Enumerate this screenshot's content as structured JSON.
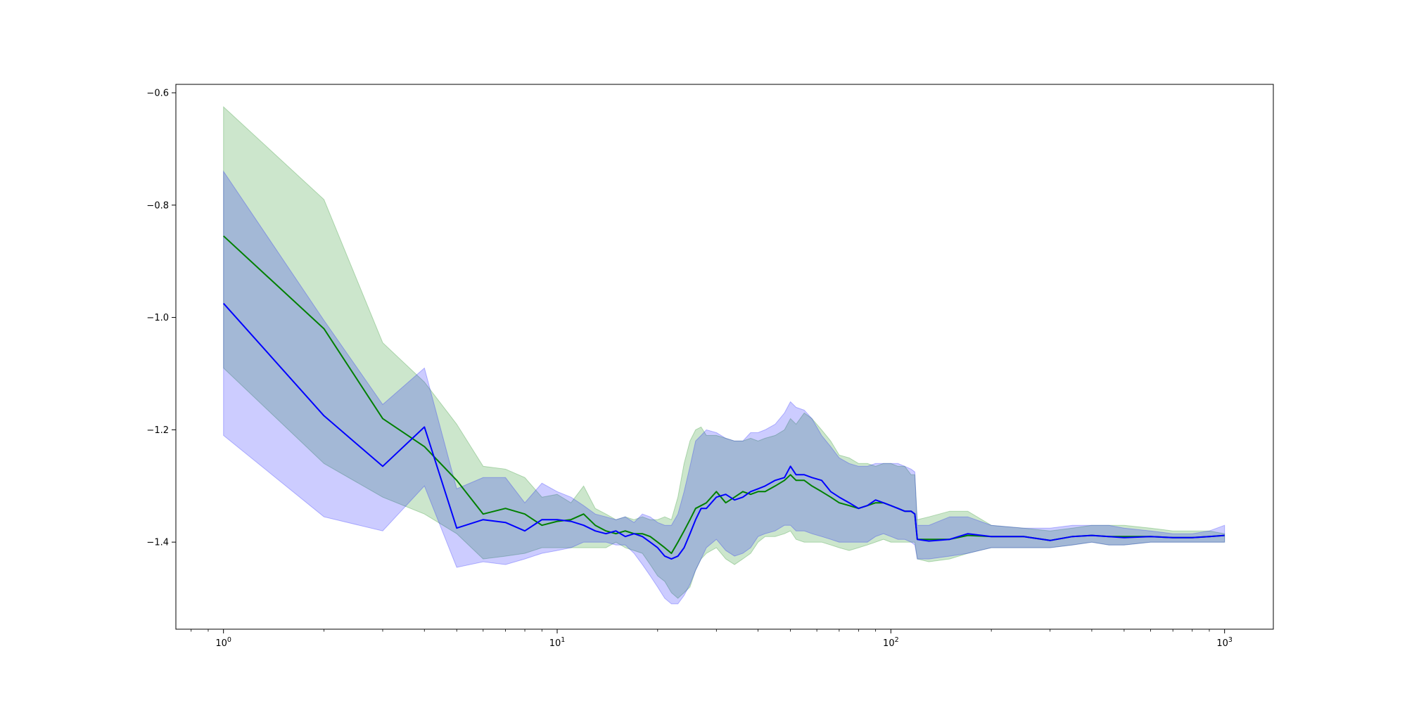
{
  "chart_data": {
    "type": "line",
    "title": "",
    "xlabel": "",
    "ylabel": "",
    "xscale": "log",
    "xlim": [
      0.72,
      1400
    ],
    "ylim": [
      -1.555,
      -0.585
    ],
    "grid": false,
    "x_ticks": [
      {
        "value": 1,
        "base": "10",
        "exp": "0"
      },
      {
        "value": 10,
        "base": "10",
        "exp": "1"
      },
      {
        "value": 100,
        "base": "10",
        "exp": "2"
      },
      {
        "value": 1000,
        "base": "10",
        "exp": "3"
      }
    ],
    "y_ticks": [
      {
        "value": -0.6,
        "label": "−0.6"
      },
      {
        "value": -0.8,
        "label": "−0.8"
      },
      {
        "value": -1.0,
        "label": "−1.0"
      },
      {
        "value": -1.2,
        "label": "−1.2"
      },
      {
        "value": -1.4,
        "label": "−1.4"
      }
    ],
    "series": [
      {
        "color": "#008000",
        "band_color": "#008000",
        "x": [
          1,
          2,
          3,
          4,
          5,
          6,
          7,
          8,
          9,
          10,
          11,
          12,
          13,
          14,
          15,
          16,
          17,
          18,
          19,
          20,
          21,
          22,
          23,
          24,
          25,
          26,
          27,
          28,
          30,
          32,
          34,
          36,
          38,
          40,
          42,
          45,
          48,
          50,
          52,
          55,
          58,
          62,
          66,
          70,
          75,
          80,
          85,
          90,
          95,
          100,
          105,
          110,
          115,
          118,
          120,
          130,
          150,
          170,
          200,
          250,
          300,
          350,
          400,
          450,
          500,
          600,
          700,
          800,
          900,
          1000
        ],
        "mean": [
          -0.855,
          -1.02,
          -1.18,
          -1.23,
          -1.29,
          -1.35,
          -1.34,
          -1.35,
          -1.37,
          -1.363,
          -1.36,
          -1.35,
          -1.37,
          -1.38,
          -1.385,
          -1.38,
          -1.385,
          -1.385,
          -1.39,
          -1.4,
          -1.41,
          -1.42,
          -1.4,
          -1.38,
          -1.36,
          -1.34,
          -1.335,
          -1.33,
          -1.31,
          -1.33,
          -1.32,
          -1.31,
          -1.315,
          -1.31,
          -1.31,
          -1.3,
          -1.29,
          -1.28,
          -1.29,
          -1.29,
          -1.3,
          -1.31,
          -1.32,
          -1.33,
          -1.335,
          -1.34,
          -1.335,
          -1.33,
          -1.33,
          -1.335,
          -1.34,
          -1.345,
          -1.345,
          -1.35,
          -1.395,
          -1.395,
          -1.395,
          -1.388,
          -1.39,
          -1.39,
          -1.397,
          -1.39,
          -1.388,
          -1.39,
          -1.39,
          -1.39,
          -1.392,
          -1.392,
          -1.39,
          -1.388
        ],
        "upper": [
          -0.625,
          -0.79,
          -1.045,
          -1.115,
          -1.19,
          -1.265,
          -1.27,
          -1.285,
          -1.32,
          -1.315,
          -1.33,
          -1.3,
          -1.34,
          -1.35,
          -1.36,
          -1.355,
          -1.36,
          -1.355,
          -1.36,
          -1.36,
          -1.355,
          -1.36,
          -1.32,
          -1.26,
          -1.22,
          -1.2,
          -1.195,
          -1.21,
          -1.21,
          -1.215,
          -1.22,
          -1.22,
          -1.215,
          -1.22,
          -1.215,
          -1.21,
          -1.2,
          -1.18,
          -1.19,
          -1.17,
          -1.18,
          -1.2,
          -1.22,
          -1.245,
          -1.25,
          -1.26,
          -1.26,
          -1.265,
          -1.26,
          -1.26,
          -1.265,
          -1.265,
          -1.28,
          -1.28,
          -1.36,
          -1.355,
          -1.345,
          -1.345,
          -1.37,
          -1.375,
          -1.38,
          -1.375,
          -1.37,
          -1.37,
          -1.37,
          -1.375,
          -1.38,
          -1.38,
          -1.38,
          -1.385
        ],
        "lower": [
          -1.09,
          -1.26,
          -1.32,
          -1.35,
          -1.385,
          -1.43,
          -1.425,
          -1.42,
          -1.41,
          -1.41,
          -1.41,
          -1.41,
          -1.41,
          -1.41,
          -1.4,
          -1.41,
          -1.415,
          -1.42,
          -1.44,
          -1.46,
          -1.47,
          -1.49,
          -1.5,
          -1.49,
          -1.48,
          -1.45,
          -1.43,
          -1.42,
          -1.41,
          -1.43,
          -1.44,
          -1.43,
          -1.42,
          -1.4,
          -1.39,
          -1.39,
          -1.385,
          -1.38,
          -1.395,
          -1.4,
          -1.4,
          -1.4,
          -1.405,
          -1.41,
          -1.415,
          -1.41,
          -1.405,
          -1.4,
          -1.395,
          -1.4,
          -1.4,
          -1.4,
          -1.4,
          -1.4,
          -1.43,
          -1.435,
          -1.43,
          -1.42,
          -1.41,
          -1.41,
          -1.41,
          -1.405,
          -1.4,
          -1.405,
          -1.405,
          -1.4,
          -1.4,
          -1.4,
          -1.4,
          -1.4
        ]
      },
      {
        "color": "#0000ff",
        "band_color": "#0000ff",
        "x": [
          1,
          2,
          3,
          4,
          5,
          6,
          7,
          8,
          9,
          10,
          11,
          12,
          13,
          14,
          15,
          16,
          17,
          18,
          19,
          20,
          21,
          22,
          23,
          24,
          25,
          26,
          27,
          28,
          30,
          32,
          34,
          36,
          38,
          40,
          42,
          45,
          48,
          50,
          52,
          55,
          58,
          62,
          66,
          70,
          75,
          80,
          85,
          90,
          95,
          100,
          105,
          110,
          115,
          118,
          120,
          130,
          150,
          170,
          200,
          250,
          300,
          350,
          400,
          450,
          500,
          600,
          700,
          800,
          900,
          1000
        ],
        "mean": [
          -0.975,
          -1.175,
          -1.265,
          -1.195,
          -1.375,
          -1.36,
          -1.365,
          -1.38,
          -1.36,
          -1.36,
          -1.363,
          -1.37,
          -1.38,
          -1.385,
          -1.38,
          -1.39,
          -1.385,
          -1.39,
          -1.4,
          -1.41,
          -1.425,
          -1.43,
          -1.425,
          -1.41,
          -1.385,
          -1.36,
          -1.34,
          -1.34,
          -1.32,
          -1.315,
          -1.325,
          -1.32,
          -1.31,
          -1.305,
          -1.3,
          -1.29,
          -1.285,
          -1.265,
          -1.28,
          -1.28,
          -1.285,
          -1.29,
          -1.31,
          -1.32,
          -1.33,
          -1.34,
          -1.335,
          -1.325,
          -1.33,
          -1.335,
          -1.34,
          -1.345,
          -1.345,
          -1.35,
          -1.395,
          -1.398,
          -1.395,
          -1.385,
          -1.39,
          -1.39,
          -1.397,
          -1.39,
          -1.388,
          -1.39,
          -1.392,
          -1.39,
          -1.392,
          -1.392,
          -1.39,
          -1.388
        ],
        "upper": [
          -0.74,
          -1.005,
          -1.155,
          -1.09,
          -1.305,
          -1.285,
          -1.285,
          -1.33,
          -1.295,
          -1.31,
          -1.32,
          -1.335,
          -1.35,
          -1.355,
          -1.36,
          -1.355,
          -1.365,
          -1.35,
          -1.355,
          -1.365,
          -1.37,
          -1.37,
          -1.35,
          -1.31,
          -1.265,
          -1.22,
          -1.21,
          -1.2,
          -1.205,
          -1.215,
          -1.22,
          -1.22,
          -1.205,
          -1.205,
          -1.2,
          -1.19,
          -1.17,
          -1.15,
          -1.16,
          -1.165,
          -1.18,
          -1.21,
          -1.23,
          -1.25,
          -1.26,
          -1.265,
          -1.265,
          -1.26,
          -1.26,
          -1.26,
          -1.26,
          -1.265,
          -1.27,
          -1.275,
          -1.37,
          -1.37,
          -1.355,
          -1.355,
          -1.37,
          -1.375,
          -1.375,
          -1.37,
          -1.37,
          -1.37,
          -1.375,
          -1.38,
          -1.385,
          -1.385,
          -1.38,
          -1.37
        ],
        "lower": [
          -1.21,
          -1.355,
          -1.38,
          -1.3,
          -1.445,
          -1.435,
          -1.44,
          -1.43,
          -1.42,
          -1.415,
          -1.41,
          -1.4,
          -1.4,
          -1.4,
          -1.405,
          -1.405,
          -1.42,
          -1.44,
          -1.46,
          -1.48,
          -1.5,
          -1.51,
          -1.51,
          -1.495,
          -1.475,
          -1.45,
          -1.43,
          -1.41,
          -1.395,
          -1.415,
          -1.425,
          -1.42,
          -1.41,
          -1.39,
          -1.385,
          -1.38,
          -1.37,
          -1.37,
          -1.38,
          -1.38,
          -1.385,
          -1.39,
          -1.395,
          -1.4,
          -1.4,
          -1.4,
          -1.4,
          -1.39,
          -1.385,
          -1.39,
          -1.395,
          -1.395,
          -1.4,
          -1.405,
          -1.43,
          -1.43,
          -1.425,
          -1.42,
          -1.41,
          -1.41,
          -1.41,
          -1.405,
          -1.4,
          -1.405,
          -1.405,
          -1.4,
          -1.4,
          -1.4,
          -1.4,
          -1.4
        ]
      }
    ]
  }
}
